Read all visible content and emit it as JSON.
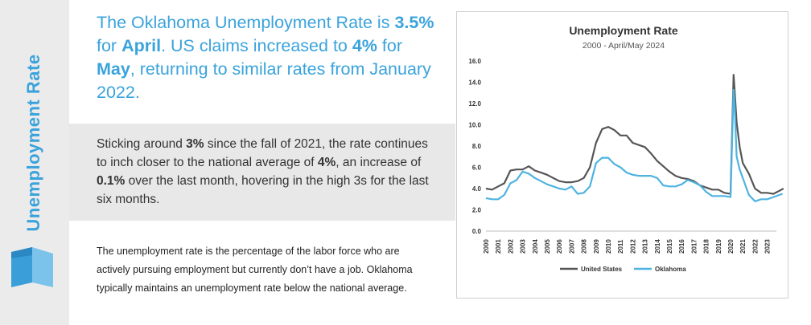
{
  "sidebar": {
    "title": "Unemployment Rate",
    "logo_icon": "blue-folded-ribbon-icon"
  },
  "headline": {
    "p1": "The Oklahoma Unemployment Rate is ",
    "b1": "3.5%",
    "p2": " for ",
    "b2": "April",
    "p3": ". US claims increased to ",
    "b3": "4%",
    "p4": " for ",
    "b4": "May",
    "p5": ", returning to similar rates from January 2022."
  },
  "summary": {
    "p1": "Sticking around ",
    "b1": "3%",
    "p2": " since the fall of 2021, the rate continues to inch closer to the national average of ",
    "b2": "4%",
    "p3": ", an increase of ",
    "b3": "0.1%",
    "p4": " over the last month, hovering in the high 3s for the last six months."
  },
  "definition": "The unemployment rate is the percentage of the labor force who are actively pursuing employment but currently don’t have a job. Oklahoma typically maintains an unemployment rate below the national average.",
  "colors": {
    "accent": "#3aa3dc",
    "us_line": "#555555",
    "ok_line": "#4fb3e0",
    "sidebar_bg": "#ebebeb",
    "band_bg": "#e8e8e9"
  },
  "chart_data": {
    "type": "line",
    "title": "Unemployment Rate",
    "subtitle": "2000 - April/May 2024",
    "xlabel": "",
    "ylabel": "",
    "ylim": [
      0,
      16
    ],
    "yticks": [
      "0.0",
      "2.0",
      "4.0",
      "6.0",
      "8.0",
      "10.0",
      "12.0",
      "14.0",
      "16.0"
    ],
    "xticks": [
      "2000",
      "2001",
      "2002",
      "2003",
      "2004",
      "2005",
      "2006",
      "2007",
      "2008",
      "2009",
      "2010",
      "2011",
      "2012",
      "2013",
      "2014",
      "2015",
      "2016",
      "2017",
      "2018",
      "2019",
      "2020",
      "2021",
      "2022",
      "2023"
    ],
    "grid": false,
    "legend": "bottom",
    "series": [
      {
        "name": "United States",
        "color": "#555555",
        "x": [
          2000,
          2000.5,
          2001,
          2001.5,
          2002,
          2002.5,
          2003,
          2003.5,
          2004,
          2004.5,
          2005,
          2005.5,
          2006,
          2006.5,
          2007,
          2007.5,
          2008,
          2008.5,
          2009,
          2009.5,
          2010,
          2010.5,
          2011,
          2011.5,
          2012,
          2012.5,
          2013,
          2013.5,
          2014,
          2014.5,
          2015,
          2015.5,
          2016,
          2016.5,
          2017,
          2017.5,
          2018,
          2018.5,
          2019,
          2019.5,
          2020,
          2020.25,
          2020.33,
          2020.5,
          2020.75,
          2021,
          2021.5,
          2022,
          2022.5,
          2023,
          2023.5,
          2024,
          2024.33
        ],
        "values": [
          4.0,
          3.9,
          4.2,
          4.5,
          5.7,
          5.8,
          5.8,
          6.1,
          5.7,
          5.5,
          5.3,
          5.0,
          4.7,
          4.6,
          4.6,
          4.7,
          5.0,
          6.0,
          8.3,
          9.6,
          9.8,
          9.5,
          9.0,
          9.0,
          8.3,
          8.1,
          7.9,
          7.3,
          6.6,
          6.1,
          5.6,
          5.2,
          5.0,
          4.9,
          4.7,
          4.3,
          4.1,
          3.9,
          3.9,
          3.6,
          3.5,
          14.7,
          13.3,
          10.2,
          7.9,
          6.4,
          5.4,
          4.0,
          3.6,
          3.6,
          3.5,
          3.8,
          4.0
        ]
      },
      {
        "name": "Oklahoma",
        "color": "#4fb3e0",
        "x": [
          2000,
          2000.5,
          2001,
          2001.5,
          2002,
          2002.5,
          2003,
          2003.5,
          2004,
          2004.5,
          2005,
          2005.5,
          2006,
          2006.5,
          2007,
          2007.5,
          2008,
          2008.5,
          2009,
          2009.5,
          2010,
          2010.5,
          2011,
          2011.5,
          2012,
          2012.5,
          2013,
          2013.5,
          2014,
          2014.5,
          2015,
          2015.5,
          2016,
          2016.5,
          2017,
          2017.5,
          2018,
          2018.5,
          2019,
          2019.5,
          2020,
          2020.25,
          2020.33,
          2020.5,
          2020.75,
          2021,
          2021.5,
          2022,
          2022.5,
          2023,
          2023.5,
          2024,
          2024.25
        ],
        "values": [
          3.1,
          3.0,
          3.0,
          3.4,
          4.5,
          4.8,
          5.6,
          5.4,
          5.0,
          4.7,
          4.4,
          4.2,
          4.0,
          3.9,
          4.2,
          3.5,
          3.6,
          4.2,
          6.4,
          6.9,
          6.9,
          6.3,
          6.0,
          5.5,
          5.3,
          5.2,
          5.2,
          5.2,
          5.0,
          4.3,
          4.2,
          4.2,
          4.4,
          4.8,
          4.6,
          4.3,
          3.7,
          3.3,
          3.3,
          3.3,
          3.2,
          13.3,
          12.0,
          7.0,
          5.8,
          5.0,
          3.4,
          2.8,
          3.0,
          3.0,
          3.2,
          3.4,
          3.5
        ]
      }
    ]
  }
}
